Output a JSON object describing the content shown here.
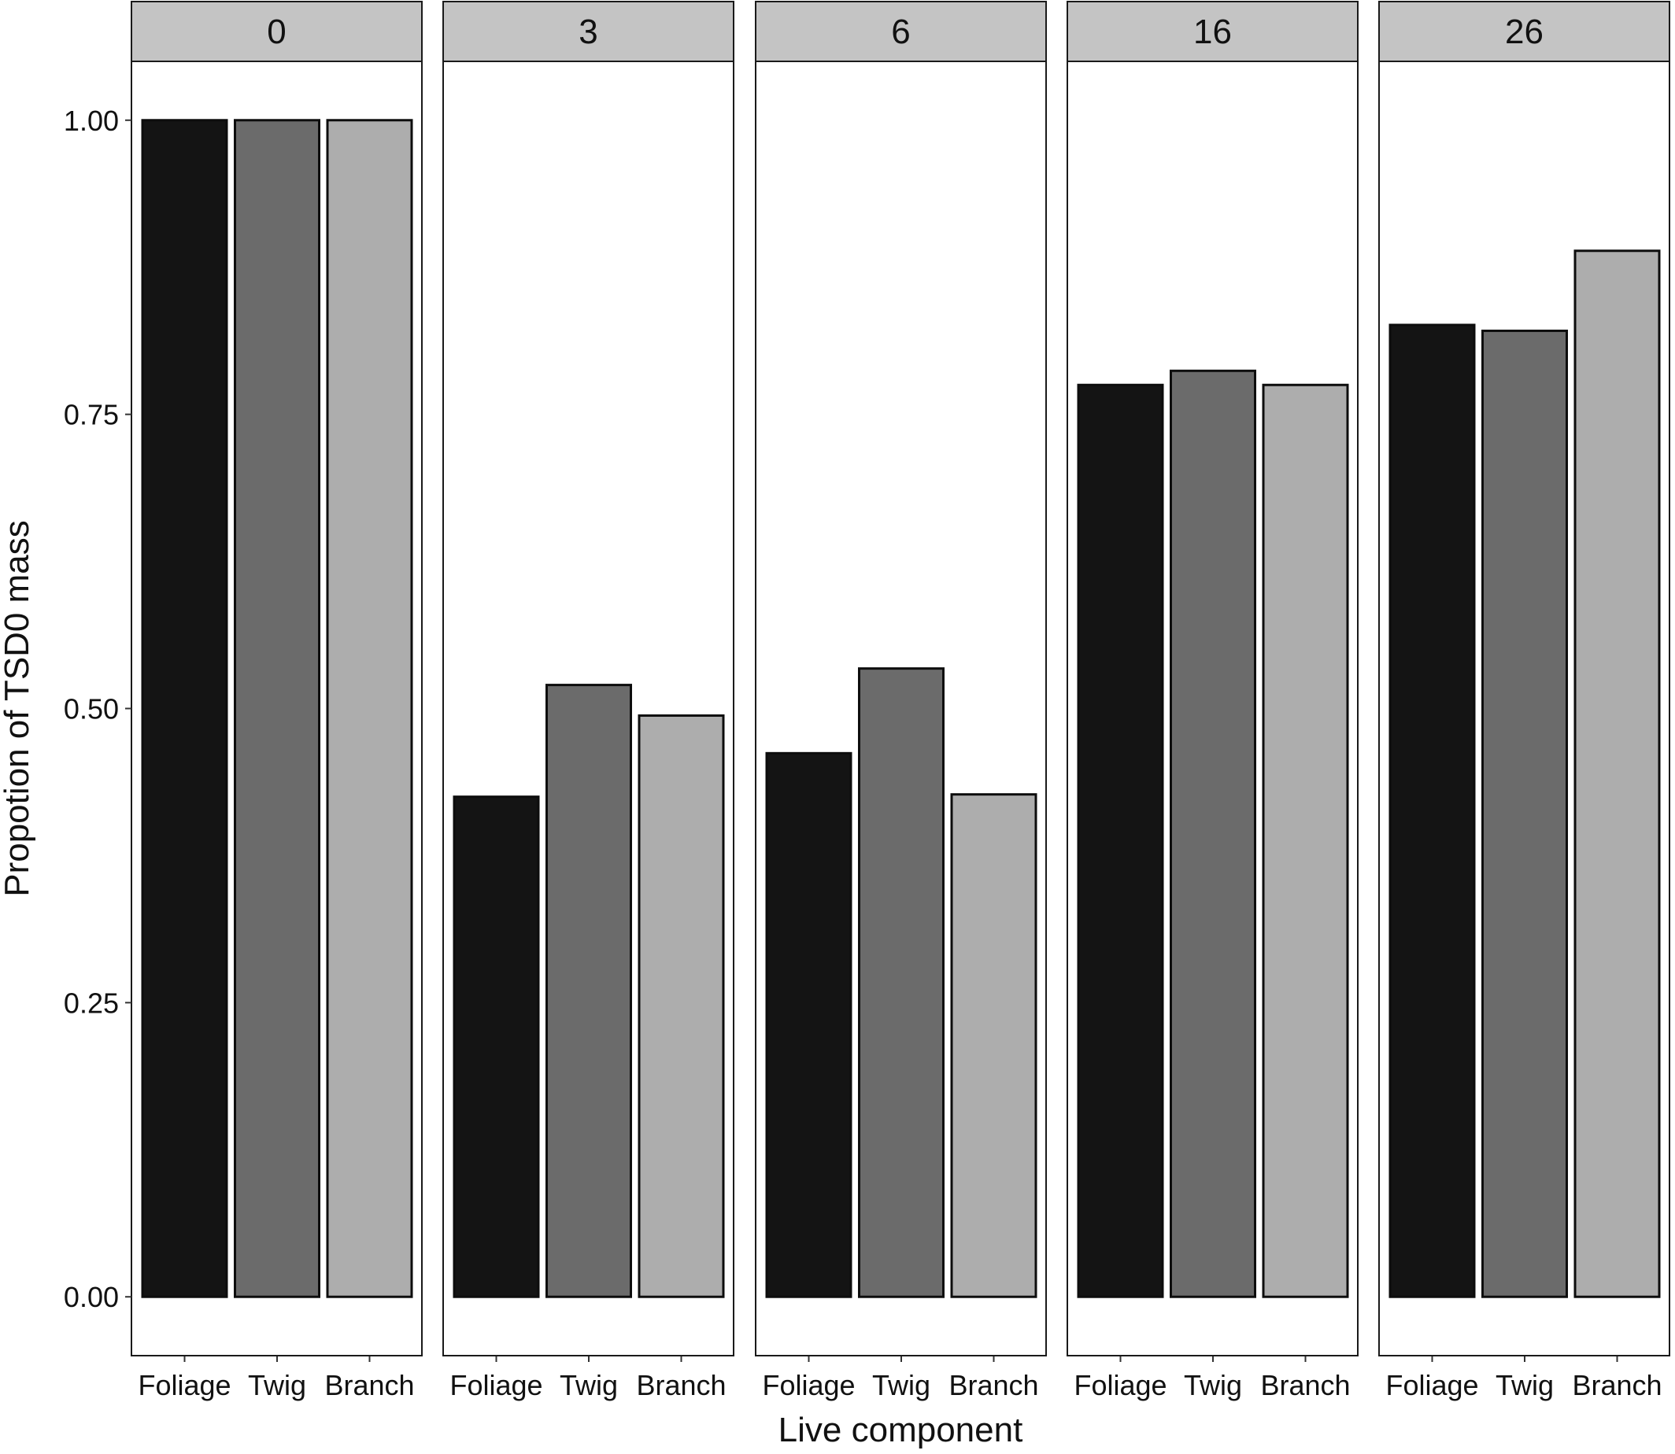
{
  "chart_data": {
    "type": "bar",
    "facets": [
      "0",
      "3",
      "6",
      "16",
      "26"
    ],
    "categories": [
      "Foliage",
      "Twig",
      "Branch"
    ],
    "colors": {
      "Foliage": "#141414",
      "Twig": "#6b6b6b",
      "Branch": "#adadad"
    },
    "values": [
      [
        1.0,
        1.0,
        1.0
      ],
      [
        0.425,
        0.52,
        0.494
      ],
      [
        0.462,
        0.534,
        0.427
      ],
      [
        0.775,
        0.787,
        0.775
      ],
      [
        0.826,
        0.821,
        0.889
      ]
    ],
    "xlabel": "Live component",
    "ylabel": "Propotion of TSD0 mass",
    "ylim": [
      -0.05,
      1.05
    ],
    "yticks": [
      "0.00",
      "0.25",
      "0.50",
      "0.75",
      "1.00"
    ],
    "ytick_values": [
      0,
      0.25,
      0.5,
      0.75,
      1.0
    ],
    "grid": false,
    "legend": "none"
  }
}
